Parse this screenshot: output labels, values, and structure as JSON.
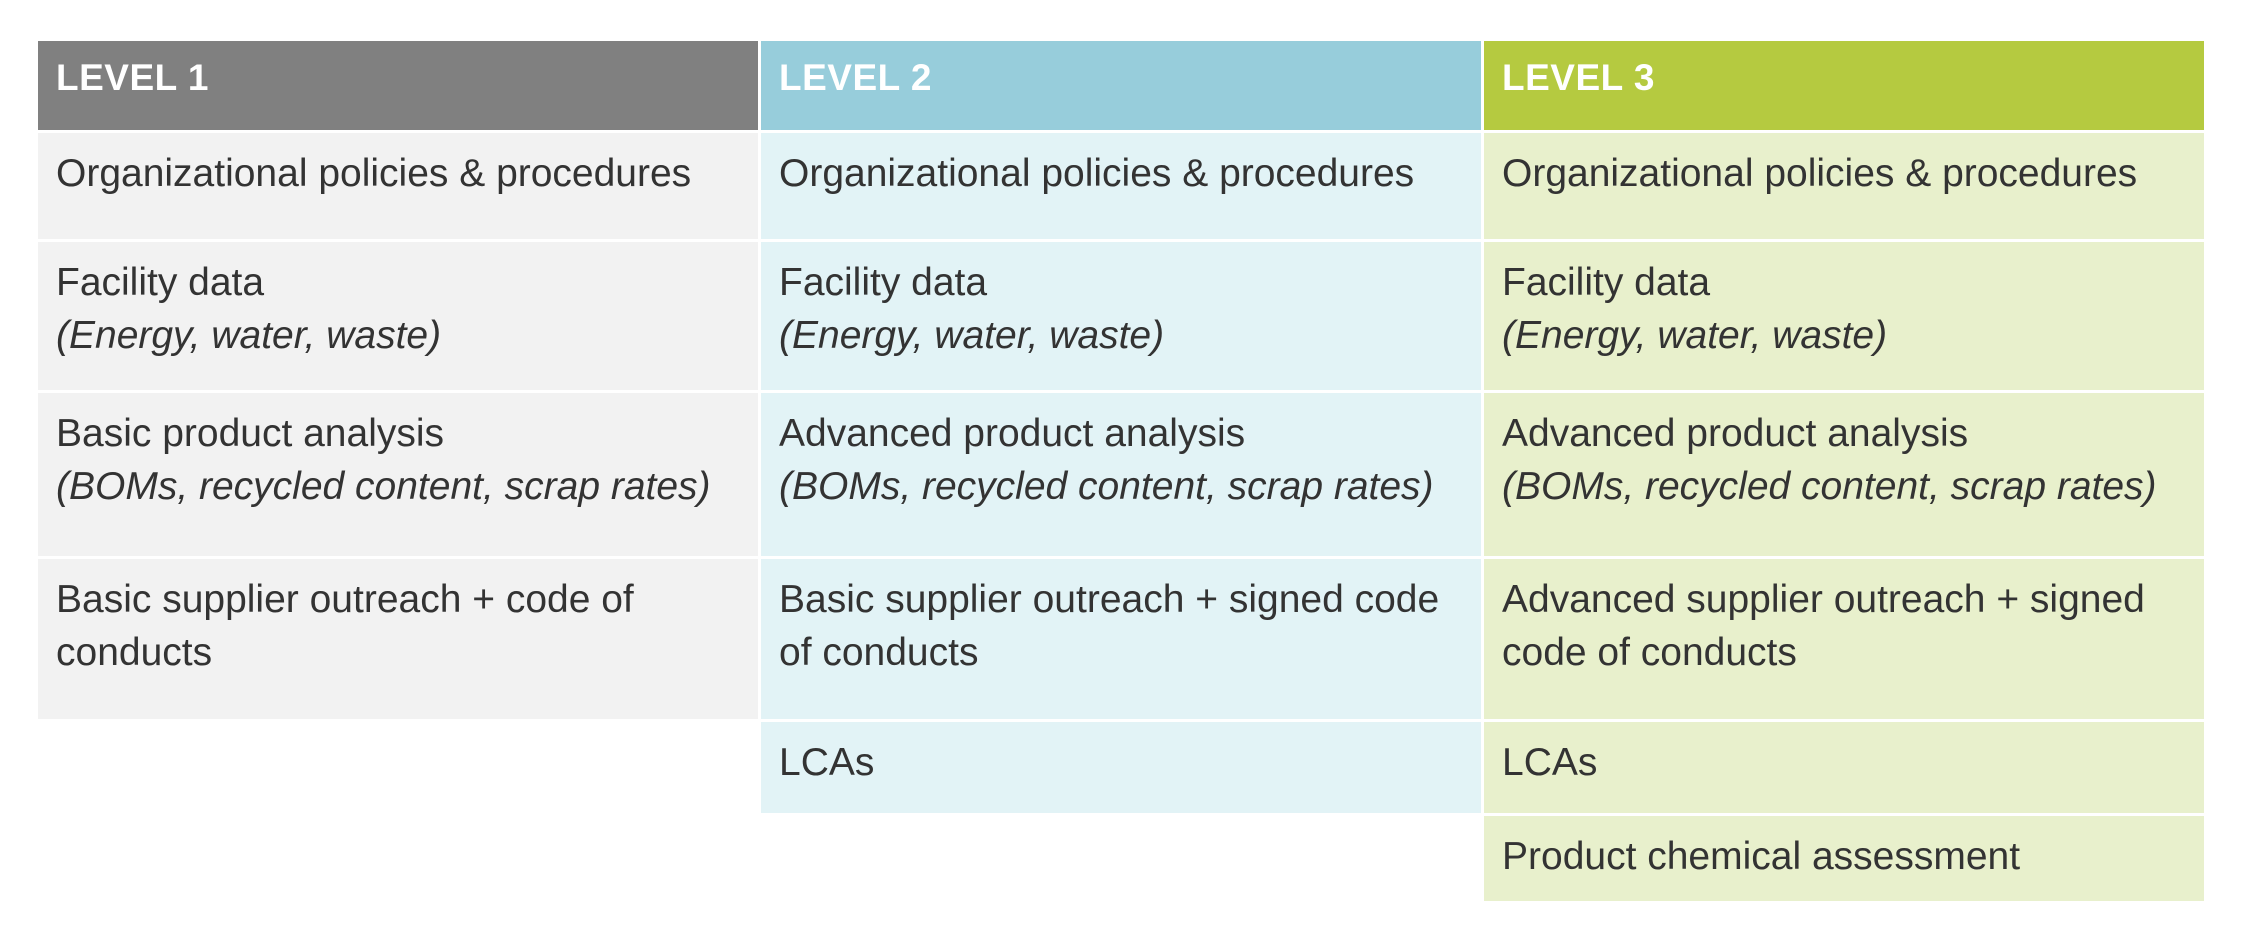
{
  "colors": {
    "level1_header": "#808080",
    "level1_cell": "#f2f2f2",
    "level2_header": "#97cddb",
    "level2_cell": "#e2f3f6",
    "level3_header": "#b5ca40",
    "level3_cell": "#e8f0cc"
  },
  "columns": [
    {
      "header": "LEVEL 1",
      "rows": [
        {
          "main": "Organizational policies & procedures"
        },
        {
          "main": "Facility data",
          "sub": "(Energy, water, waste)"
        },
        {
          "main": "Basic product analysis",
          "sub": "(BOMs, recycled content, scrap rates)"
        },
        {
          "main": "Basic supplier outreach + code of conducts"
        }
      ]
    },
    {
      "header": "LEVEL 2",
      "rows": [
        {
          "main": "Organizational policies & procedures"
        },
        {
          "main": "Facility data",
          "sub": "(Energy, water, waste)"
        },
        {
          "main": "Advanced product analysis",
          "sub": "(BOMs, recycled content, scrap rates)"
        },
        {
          "main": "Basic supplier outreach + signed code of conducts"
        },
        {
          "main": "LCAs"
        }
      ]
    },
    {
      "header": "LEVEL 3",
      "rows": [
        {
          "main": "Organizational policies & procedures"
        },
        {
          "main": "Facility data",
          "sub": "(Energy, water, waste)"
        },
        {
          "main": "Advanced product analysis",
          "sub": "(BOMs, recycled content, scrap rates)"
        },
        {
          "main": "Advanced supplier outreach + signed code of conducts"
        },
        {
          "main": "LCAs"
        },
        {
          "main": "Product chemical assessment"
        }
      ]
    }
  ]
}
